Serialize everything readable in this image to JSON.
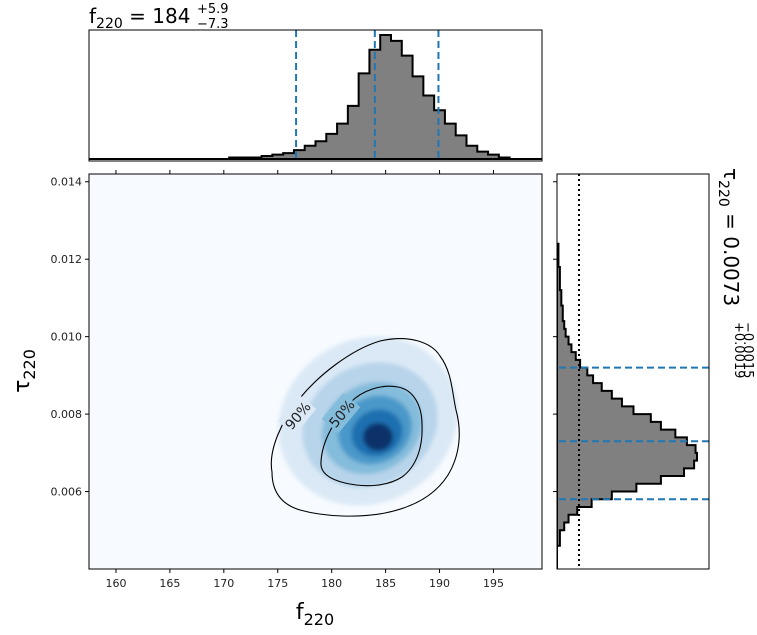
{
  "chart_data": [
    {
      "type": "histogram",
      "panel": "marginal-x",
      "title": {
        "base": "f",
        "sub": "220",
        "eq": " = 184",
        "sup": "+5.9",
        "inf": "−7.3"
      },
      "xlim": [
        157.5,
        199.5
      ],
      "bins": [
        [
          157.5,
          0.0
        ],
        [
          160.5,
          0.0
        ],
        [
          162.5,
          0.0
        ],
        [
          164.5,
          0.0
        ],
        [
          166.5,
          0.0
        ],
        [
          168.5,
          0.0
        ],
        [
          170.5,
          0.01
        ],
        [
          171.5,
          0.01
        ],
        [
          172.5,
          0.01
        ],
        [
          173.5,
          0.02
        ],
        [
          174.5,
          0.03
        ],
        [
          175.5,
          0.04
        ],
        [
          176.5,
          0.06
        ],
        [
          177.5,
          0.09
        ],
        [
          178.5,
          0.12
        ],
        [
          179.5,
          0.17
        ],
        [
          180.5,
          0.24
        ],
        [
          181.5,
          0.36
        ],
        [
          182.5,
          0.58
        ],
        [
          183.5,
          0.74
        ],
        [
          184.5,
          0.84
        ],
        [
          185.5,
          0.8
        ],
        [
          186.5,
          0.7
        ],
        [
          187.5,
          0.56
        ],
        [
          188.5,
          0.43
        ],
        [
          189.5,
          0.33
        ],
        [
          190.5,
          0.24
        ],
        [
          191.5,
          0.16
        ],
        [
          192.5,
          0.09
        ],
        [
          193.5,
          0.05
        ],
        [
          194.5,
          0.03
        ],
        [
          195.5,
          0.01
        ],
        [
          196.5,
          0.0
        ],
        [
          197.5,
          0.0
        ],
        [
          199.5,
          0.0
        ]
      ],
      "quantiles": [
        176.7,
        184.0,
        189.9
      ],
      "reference": 0
    },
    {
      "type": "heatmap",
      "panel": "joint",
      "xlabel": {
        "base": "f",
        "sub": "220"
      },
      "ylabel": {
        "base": "τ",
        "sub": "220"
      },
      "xlim": [
        157.5,
        199.5
      ],
      "ylim": [
        0.004,
        0.0142
      ],
      "xticks": [
        "160",
        "165",
        "170",
        "175",
        "180",
        "185",
        "190",
        "195"
      ],
      "xtick_values": [
        160,
        165,
        170,
        175,
        180,
        185,
        190,
        195
      ],
      "yticks": [
        "0.006",
        "0.008",
        "0.010",
        "0.012",
        "0.014"
      ],
      "ytick_values": [
        0.006,
        0.008,
        0.01,
        0.012,
        0.014
      ],
      "peak": {
        "f": 184.3,
        "tau": 0.0071
      },
      "contours": [
        {
          "label": "90%",
          "label_at": [
            177.0,
            0.0078
          ]
        },
        {
          "label": "50%",
          "label_at": [
            181.0,
            0.0077
          ]
        }
      ],
      "colormap": "Blues"
    },
    {
      "type": "histogram",
      "panel": "marginal-y",
      "title": {
        "base": "τ",
        "sub": "220",
        "eq": " = 0.0073",
        "sup": "+0.0019",
        "inf": "−0.0015"
      },
      "ylim": [
        0.004,
        0.0142
      ],
      "bins": [
        [
          0.004,
          0.0
        ],
        [
          0.0046,
          0.02
        ],
        [
          0.005,
          0.05
        ],
        [
          0.0052,
          0.08
        ],
        [
          0.0054,
          0.14
        ],
        [
          0.0056,
          0.24
        ],
        [
          0.0058,
          0.38
        ],
        [
          0.006,
          0.55
        ],
        [
          0.0062,
          0.72
        ],
        [
          0.0064,
          0.88
        ],
        [
          0.0066,
          0.95
        ],
        [
          0.0068,
          0.97
        ],
        [
          0.007,
          0.96
        ],
        [
          0.0072,
          0.9
        ],
        [
          0.0074,
          0.82
        ],
        [
          0.0076,
          0.72
        ],
        [
          0.0078,
          0.65
        ],
        [
          0.008,
          0.53
        ],
        [
          0.0082,
          0.45
        ],
        [
          0.0084,
          0.38
        ],
        [
          0.0086,
          0.31
        ],
        [
          0.0088,
          0.25
        ],
        [
          0.009,
          0.21
        ],
        [
          0.0092,
          0.16
        ],
        [
          0.0094,
          0.13
        ],
        [
          0.0096,
          0.1
        ],
        [
          0.0098,
          0.08
        ],
        [
          0.01,
          0.06
        ],
        [
          0.0102,
          0.05
        ],
        [
          0.0104,
          0.04
        ],
        [
          0.0108,
          0.03
        ],
        [
          0.0112,
          0.02
        ],
        [
          0.0118,
          0.01
        ],
        [
          0.0124,
          0.0
        ]
      ],
      "quantiles": [
        0.0058,
        0.0073,
        0.0092
      ],
      "reference": 0.16
    }
  ],
  "colors": {
    "hist_fill": "#808080",
    "hist_edge": "#000000",
    "quantile_line": "#1f77b4",
    "contour": "#000000",
    "axis": "#000000"
  }
}
